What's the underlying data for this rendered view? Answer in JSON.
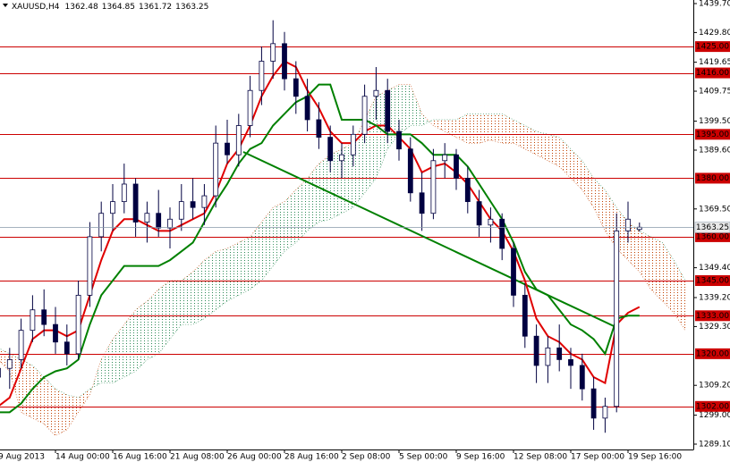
{
  "chart_data": {
    "type": "candlestick",
    "symbol": "XAUUSD,H4",
    "categories": [
      "9 Aug 2013",
      null,
      null,
      null,
      null,
      "14 Aug 00:00",
      null,
      null,
      null,
      null,
      "16 Aug 16:00",
      null,
      null,
      null,
      null,
      "21 Aug 08:00",
      null,
      null,
      null,
      null,
      "26 Aug 00:00",
      null,
      null,
      null,
      null,
      "28 Aug 16:00",
      null,
      null,
      null,
      null,
      "2 Sep 08:00",
      null,
      null,
      null,
      null,
      "5 Sep 00:00",
      null,
      null,
      null,
      null,
      "9 Sep 16:00",
      null,
      null,
      null,
      null,
      "12 Sep 08:00",
      null,
      null,
      null,
      null,
      "17 Sep 00:00",
      null,
      null,
      null,
      null,
      "19 Sep 16:00",
      null,
      null,
      null,
      null,
      null
    ],
    "candles": {
      "color": "#000040",
      "open": [
        1312,
        1315,
        1318,
        1328,
        1335,
        1330,
        1324,
        1320,
        1340,
        1360,
        1368,
        1372,
        1378,
        1365,
        1368,
        1363,
        1366,
        1372,
        1370,
        1374,
        1392,
        1388,
        1398,
        1410,
        1420,
        1426,
        1414,
        1408,
        1400,
        1394,
        1386,
        1388,
        1395,
        1408,
        1410,
        1396,
        1390,
        1375,
        1368,
        1386,
        1388,
        1380,
        1372,
        1364,
        1366,
        1356,
        1340,
        1326,
        1316,
        1322,
        1318,
        1316,
        1308,
        1298,
        1302,
        1362,
        1362.48,
        null,
        null,
        null,
        null
      ],
      "high": [
        1318,
        1322,
        1332,
        1340,
        1342,
        1336,
        1330,
        1345,
        1365,
        1372,
        1378,
        1385,
        1380,
        1372,
        1376,
        1370,
        1378,
        1380,
        1378,
        1398,
        1400,
        1402,
        1415,
        1425,
        1434,
        1430,
        1420,
        1414,
        1406,
        1398,
        1392,
        1398,
        1412,
        1418,
        1414,
        1400,
        1394,
        1382,
        1390,
        1392,
        1390,
        1384,
        1376,
        1370,
        1368,
        1358,
        1344,
        1330,
        1326,
        1330,
        1322,
        1320,
        1312,
        1305,
        1368,
        1372,
        1364.85,
        null,
        null,
        null,
        null
      ],
      "low": [
        1305,
        1308,
        1315,
        1324,
        1326,
        1320,
        1316,
        1318,
        1336,
        1355,
        1362,
        1368,
        1360,
        1358,
        1360,
        1356,
        1362,
        1366,
        1364,
        1370,
        1385,
        1384,
        1394,
        1405,
        1414,
        1410,
        1402,
        1396,
        1390,
        1382,
        1380,
        1384,
        1392,
        1400,
        1392,
        1386,
        1372,
        1362,
        1366,
        1380,
        1376,
        1368,
        1360,
        1358,
        1352,
        1336,
        1322,
        1310,
        1310,
        1314,
        1308,
        1304,
        1294,
        1293,
        1300,
        1358,
        1361.72,
        null,
        null,
        null,
        null
      ],
      "close": [
        1315,
        1318,
        1328,
        1335,
        1330,
        1324,
        1320,
        1340,
        1360,
        1368,
        1372,
        1378,
        1365,
        1368,
        1363,
        1366,
        1372,
        1370,
        1374,
        1392,
        1388,
        1398,
        1410,
        1420,
        1426,
        1414,
        1408,
        1400,
        1394,
        1386,
        1388,
        1395,
        1408,
        1410,
        1396,
        1390,
        1375,
        1368,
        1386,
        1388,
        1380,
        1372,
        1364,
        1366,
        1356,
        1340,
        1326,
        1316,
        1322,
        1318,
        1316,
        1308,
        1298,
        1302,
        1362,
        1366,
        1363.25,
        null,
        null,
        null,
        null
      ]
    },
    "series": [
      {
        "color": "#e00000",
        "values": [
          1302,
          1305,
          1315,
          1325,
          1328,
          1328,
          1326,
          1328,
          1340,
          1352,
          1362,
          1366,
          1366,
          1364,
          1362,
          1362,
          1364,
          1366,
          1368,
          1375,
          1385,
          1390,
          1398,
          1408,
          1415,
          1420,
          1418,
          1410,
          1404,
          1396,
          1392,
          1392,
          1396,
          1398,
          1398,
          1394,
          1390,
          1382,
          1384,
          1385,
          1382,
          1378,
          1372,
          1366,
          1362,
          1355,
          1345,
          1332,
          1326,
          1324,
          1320,
          1318,
          1312,
          1310,
          1330,
          1334,
          1336,
          null,
          null,
          null,
          null
        ]
      },
      {
        "color": "#008000",
        "values": [
          1300,
          1300,
          1303,
          1308,
          1312,
          1314,
          1315,
          1318,
          1330,
          1340,
          1345,
          1350,
          1350,
          1350,
          1350,
          1352,
          1355,
          1358,
          1365,
          1372,
          1378,
          1385,
          1390,
          1392,
          1398,
          1402,
          1406,
          1408,
          1412,
          1412,
          1400,
          1400,
          1400,
          1398,
          1395,
          1395,
          1395,
          1392,
          1388,
          1388,
          1388,
          1384,
          1378,
          1372,
          1366,
          1358,
          1348,
          1342,
          1340,
          1335,
          1330,
          1328,
          1325,
          1320,
          1332,
          1333,
          1333,
          null,
          null,
          null,
          null
        ]
      }
    ],
    "cloud": {
      "up_color": "#2e8b57",
      "down_color": "#c04000",
      "span_a": [
        1318,
        1314,
        1300,
        1298,
        1296,
        1292,
        1294,
        1300,
        1306,
        1318,
        1325,
        1330,
        1335,
        1338,
        1342,
        1345,
        1345,
        1348,
        1352,
        1355,
        1356,
        1358,
        1360,
        1365,
        1370,
        1372,
        1376,
        1380,
        1385,
        1388,
        1390,
        1392,
        1400,
        1408,
        1410,
        1412,
        1412,
        1402,
        1398,
        1396,
        1394,
        1392,
        1392,
        1393,
        1392,
        1392,
        1390,
        1388,
        1386,
        1384,
        1380,
        1376,
        1370,
        1362,
        1356,
        1352,
        1348,
        1342,
        1338,
        1334,
        1328
      ],
      "span_b": [
        1322,
        1320,
        1318,
        1316,
        1312,
        1308,
        1306,
        1305,
        1308,
        1310,
        1310,
        1312,
        1314,
        1318,
        1320,
        1325,
        1330,
        1330,
        1332,
        1335,
        1338,
        1340,
        1342,
        1345,
        1350,
        1355,
        1358,
        1362,
        1365,
        1366,
        1368,
        1370,
        1375,
        1380,
        1390,
        1395,
        1398,
        1398,
        1400,
        1400,
        1400,
        1402,
        1402,
        1402,
        1402,
        1400,
        1398,
        1396,
        1395,
        1394,
        1390,
        1386,
        1380,
        1376,
        1370,
        1365,
        1362,
        1360,
        1358,
        1352,
        1345
      ]
    },
    "trendline": {
      "color": "#008000",
      "x": [
        21.4,
        54
      ],
      "values": [
        1389,
        1329
      ]
    },
    "levels": {
      "color": "#cc0000",
      "values": [
        1425,
        1416,
        1395,
        1380,
        1360,
        1345,
        1333,
        1320,
        1302
      ],
      "value_labels": [
        "1425.00",
        "1416.00",
        "1395.00",
        "1380.00",
        "1360.00",
        "1345.00",
        "1333.00",
        "1320.00",
        "1302.00"
      ]
    },
    "ylim": [
      1287.27,
      1440.92
    ],
    "yticks": [
      {
        "value": 1439.7,
        "label": "1439.70"
      },
      {
        "value": 1429.8,
        "label": "1429.80"
      },
      1419.65,
      1409.75,
      {
        "value": 1399.5,
        "label": "1399.50"
      },
      {
        "value": 1389.6,
        "label": "1389.60"
      },
      {
        "value": 1369.5,
        "label": "1369.50"
      },
      {
        "value": 1349.4,
        "label": "1349.40"
      },
      {
        "value": 1339.2,
        "label": "1339.20"
      },
      {
        "value": 1329.3,
        "label": "1329.30"
      },
      {
        "value": 1309.2,
        "label": "1309.20"
      },
      {
        "value": 1299.0,
        "label": "1299.00"
      },
      {
        "value": 1289.1,
        "label": "1289.10"
      }
    ],
    "grid": false
  }
}
